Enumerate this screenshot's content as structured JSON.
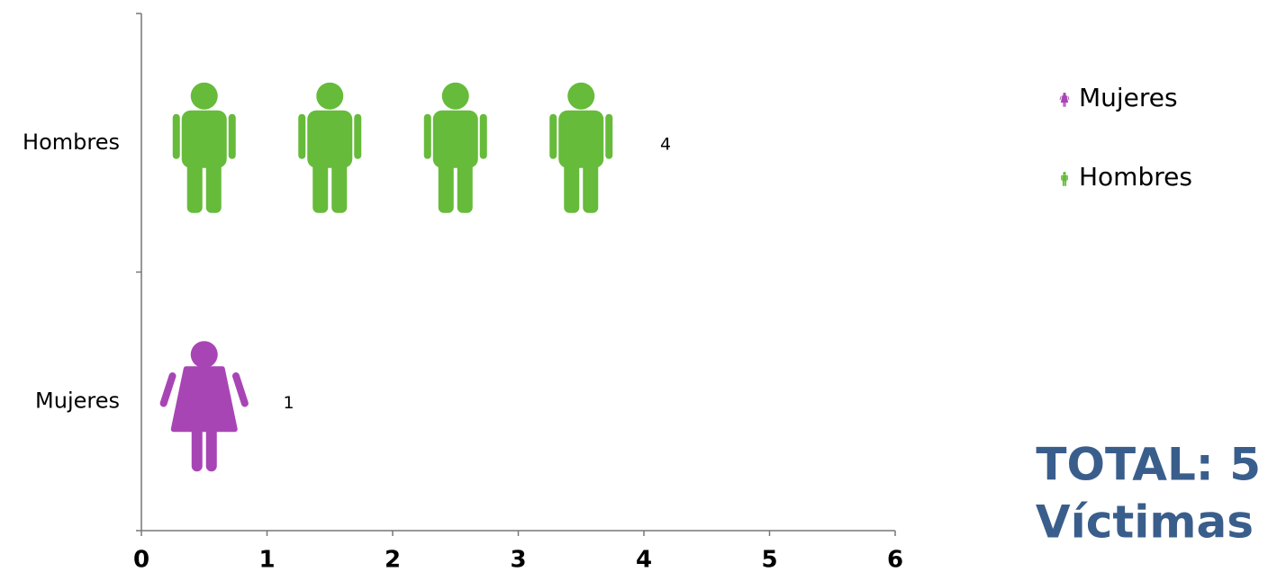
{
  "chart_data": {
    "type": "pictograph",
    "orientation": "horizontal",
    "categories": [
      "Hombres",
      "Mujeres"
    ],
    "values": [
      4,
      1
    ],
    "colors": [
      "#66bb3a",
      "#a845b5"
    ],
    "xlim": [
      0,
      6
    ],
    "xticks": [
      0,
      1,
      2,
      3,
      4,
      5,
      6
    ],
    "legend": "right",
    "annotations": [
      "TOTAL: 5",
      "Víctimas"
    ]
  }
}
